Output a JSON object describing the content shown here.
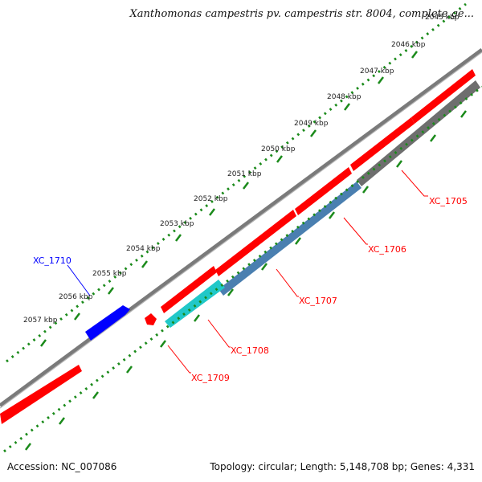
{
  "header": {
    "title": "Xanthomonas campestris pv. campestris str. 8004, complete ge..."
  },
  "footer": {
    "accession": "Accession: NC_007086",
    "summary": "Topology: circular; Length: 5,148,708 bp; Genes: 4,331"
  },
  "ruler": {
    "unit": "kbp",
    "ticks": [
      "2045 kbp",
      "2046 kbp",
      "2047 kbp",
      "2048 kbp",
      "2049 kbp",
      "2050 kbp",
      "2051 kbp",
      "2052 kbp",
      "2053 kbp",
      "2054 kbp",
      "2055 kbp",
      "2056 kbp",
      "2057 kbp"
    ]
  },
  "genes": [
    {
      "locus_tag": "XC_1705",
      "strand": "forward"
    },
    {
      "locus_tag": "XC_1706",
      "strand": "forward"
    },
    {
      "locus_tag": "XC_1707",
      "strand": "forward"
    },
    {
      "locus_tag": "XC_1708",
      "strand": "forward"
    },
    {
      "locus_tag": "XC_1709",
      "strand": "forward"
    },
    {
      "locus_tag": "XC_1710",
      "strand": "reverse"
    }
  ],
  "colors": {
    "cds_forward": "#ff0000",
    "cds_reverse": "#0000ff",
    "backbone": "#808080",
    "ruler_dots": "#1a8a1a",
    "gene_label_forward": "#ff0000",
    "gene_label_reverse": "#0000ff",
    "feature_gray": "#6e6e6e",
    "feature_steelblue": "#4a7fb0",
    "feature_cyan": "#20c8c8"
  }
}
